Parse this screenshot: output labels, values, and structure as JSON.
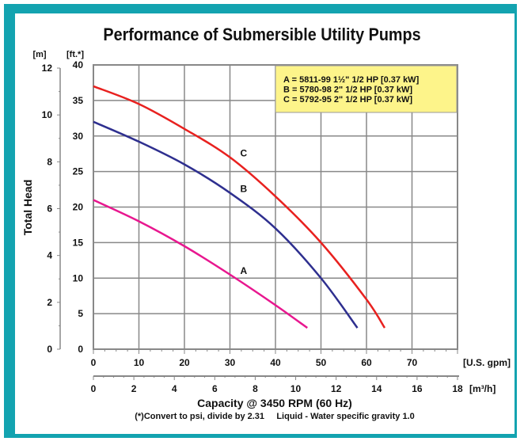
{
  "chart_data": {
    "type": "line",
    "title": "Performance of Submersible Utility Pumps",
    "xlabel": "Capacity @ 3450 RPM (60 Hz)",
    "ylabel": "Total Head",
    "x_unit_primary": "[U.S. gpm]",
    "x_unit_secondary": "[m³/h]",
    "y_unit_primary": "[ft.*]",
    "y_unit_secondary": "[m]",
    "xlim": [
      0,
      80
    ],
    "ylim": [
      0,
      40
    ],
    "x2lim": [
      0,
      18
    ],
    "y2lim": [
      0,
      12
    ],
    "x_ticks": [
      0,
      10,
      20,
      30,
      40,
      50,
      60,
      70
    ],
    "y_ticks": [
      0,
      5,
      10,
      15,
      20,
      25,
      30,
      35,
      40
    ],
    "x2_ticks": [
      0,
      2,
      4,
      6,
      8,
      10,
      12,
      14,
      16,
      18
    ],
    "y2_ticks": [
      0,
      2,
      4,
      6,
      8,
      10,
      12
    ],
    "grid": true,
    "legend_placement": "top-right",
    "legend_bg": "#fdf48a",
    "legend": [
      "A = 5811-99 1½\" 1/2 HP [0.37 kW]",
      "B = 5780-98 2\" 1/2 HP [0.37 kW]",
      "C = 5792-95 2\" 1/2 HP [0.37 kW]"
    ],
    "series": [
      {
        "name": "A",
        "color": "#e8178f",
        "x": [
          0,
          10,
          20,
          30,
          40,
          47
        ],
        "y": [
          21,
          18,
          14.5,
          10.5,
          6.2,
          3
        ]
      },
      {
        "name": "B",
        "color": "#2e2f8f",
        "x": [
          0,
          10,
          20,
          30,
          40,
          50,
          58
        ],
        "y": [
          32,
          29.2,
          26,
          22,
          17,
          10,
          3
        ]
      },
      {
        "name": "C",
        "color": "#e8211f",
        "x": [
          0,
          10,
          20,
          30,
          40,
          50,
          60,
          64
        ],
        "y": [
          37,
          34.5,
          31,
          27,
          21.5,
          15,
          7,
          3
        ]
      }
    ],
    "footnote": "(*)Convert to psi, divide by 2.31     Liquid - Water specific gravity 1.0"
  }
}
